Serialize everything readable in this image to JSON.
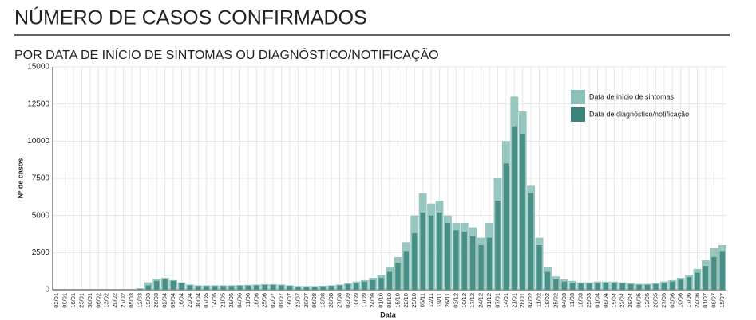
{
  "chart_data": {
    "type": "bar",
    "title": "NÚMERO DE CASOS CONFIRMADOS",
    "subtitle": "POR DATA DE INÍCIO DE SINTOMAS OU DIAGNÓSTICO/NOTIFICAÇÃO",
    "x_label": "Data",
    "y_label": "Nº de casos",
    "categories": [
      "02/01",
      "09/01",
      "16/01",
      "23/01",
      "30/01",
      "06/02",
      "13/02",
      "20/02",
      "27/02",
      "05/03",
      "12/03",
      "19/03",
      "26/03",
      "02/04",
      "09/04",
      "16/04",
      "23/04",
      "30/04",
      "07/05",
      "14/05",
      "21/05",
      "28/05",
      "04/06",
      "11/06",
      "18/06",
      "25/06",
      "02/07",
      "09/07",
      "16/07",
      "23/07",
      "30/07",
      "06/08",
      "13/08",
      "20/08",
      "27/08",
      "03/09",
      "10/09",
      "17/09",
      "24/09",
      "01/10",
      "08/10",
      "15/10",
      "22/10",
      "29/10",
      "05/11",
      "12/11",
      "19/11",
      "26/11",
      "03/12",
      "10/12",
      "17/12",
      "24/12",
      "31/12",
      "07/01",
      "14/01",
      "21/01",
      "28/01",
      "04/02",
      "11/02",
      "18/02",
      "25/02",
      "04/03",
      "11/03",
      "18/03",
      "25/03",
      "01/04",
      "08/04",
      "15/04",
      "22/04",
      "29/04",
      "06/05",
      "13/05",
      "20/05",
      "27/05",
      "03/06",
      "10/06",
      "17/06",
      "24/06",
      "01/07",
      "08/07",
      "15/07"
    ],
    "series": [
      {
        "name": "Data de início de sintomas",
        "color": "#8cc1b8",
        "values": [
          0,
          0,
          0,
          0,
          0,
          0,
          0,
          0,
          0,
          0,
          100,
          500,
          750,
          800,
          650,
          500,
          350,
          300,
          300,
          300,
          300,
          300,
          320,
          330,
          350,
          380,
          380,
          350,
          300,
          250,
          250,
          250,
          270,
          300,
          350,
          450,
          550,
          650,
          800,
          1000,
          1500,
          2200,
          3200,
          5000,
          6500,
          5800,
          6000,
          5000,
          4500,
          4500,
          4200,
          3500,
          4500,
          7500,
          10000,
          13000,
          12000,
          7000,
          3500,
          1500,
          900,
          700,
          600,
          500,
          500,
          550,
          550,
          550,
          500,
          450,
          400,
          400,
          450,
          550,
          650,
          800,
          1000,
          1400,
          2000,
          2800,
          3000
        ]
      },
      {
        "name": "Data de diagnóstico/notificação",
        "color": "#3a857c",
        "values": [
          0,
          0,
          0,
          0,
          0,
          0,
          0,
          0,
          0,
          0,
          50,
          300,
          600,
          700,
          600,
          450,
          300,
          250,
          250,
          250,
          250,
          250,
          270,
          280,
          300,
          320,
          320,
          300,
          260,
          220,
          210,
          210,
          230,
          260,
          300,
          380,
          450,
          550,
          650,
          800,
          1200,
          1800,
          2600,
          3800,
          5200,
          5000,
          5200,
          4500,
          4000,
          3900,
          3600,
          3000,
          3500,
          6000,
          8500,
          11000,
          10500,
          6500,
          3000,
          1200,
          700,
          550,
          480,
          420,
          420,
          450,
          480,
          470,
          430,
          380,
          340,
          340,
          380,
          450,
          550,
          680,
          850,
          1150,
          1600,
          2200,
          2600
        ]
      }
    ],
    "ylim": [
      0,
      15000
    ],
    "yticks": [
      0,
      2500,
      5000,
      7500,
      10000,
      12500,
      15000
    ],
    "grid": true,
    "legend": "top-right"
  }
}
